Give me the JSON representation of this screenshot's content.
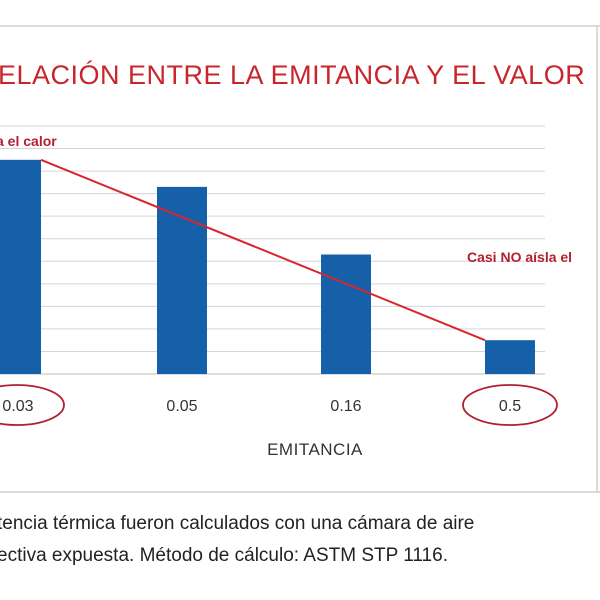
{
  "chart_data": {
    "type": "bar",
    "title": "ELACIÓN ENTRE LA EMITANCIA Y EL VALOR",
    "categories": [
      "0.03",
      "0.05",
      "0.16",
      "0.5"
    ],
    "values": [
      95,
      83,
      53,
      15
    ],
    "xlabel": "EMITANCIA",
    "ylabel": "",
    "ylim": [
      0,
      110
    ],
    "grid": true,
    "bar_color": "#1560a8",
    "trend_color": "#d9262e",
    "circle_color": "#b31f2e",
    "circled_categories": [
      "0.03",
      "0.5"
    ],
    "trend_line": {
      "from_category": "0.03",
      "to_category": "0.5",
      "from_value": 95,
      "to_value": 15
    },
    "annotations": [
      {
        "text": "a el calor",
        "near": "0.03"
      },
      {
        "text": "Casi NO aísla el",
        "near": "0.5"
      }
    ]
  },
  "footnote": {
    "line1": "tencia térmica fueron calculados con una cámara de aire",
    "line2": "ectiva expuesta. Método de cálculo: ASTM STP 1116."
  }
}
